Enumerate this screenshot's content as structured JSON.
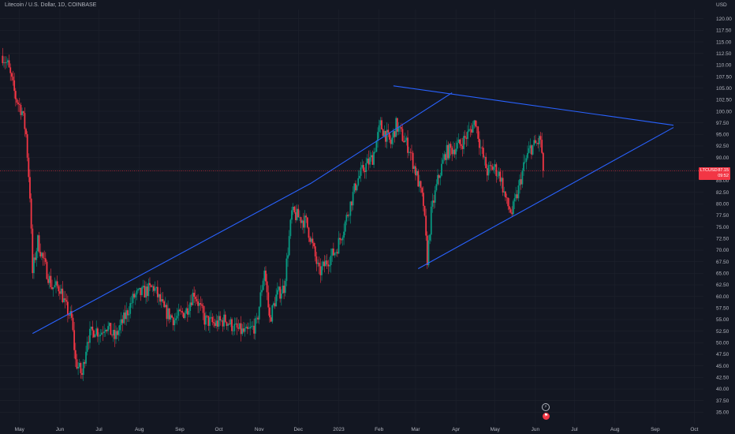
{
  "header": {
    "title": "Litecoin / U.S. Dollar, 1D, COINBASE"
  },
  "axis": {
    "currency_label": "USD"
  },
  "price_badge": {
    "symbol": "LTCUSD",
    "price": "87.15",
    "countdown": "09:52"
  },
  "colors": {
    "background": "#131722",
    "grid": "#1e222d",
    "up": "#089981",
    "down": "#f23645",
    "trendline": "#2962ff",
    "axis_text": "#b2b5be"
  },
  "icons": {
    "split_event": "dividend-icon",
    "earnings_event": "flag-icon"
  },
  "chart_data": {
    "type": "candlestick",
    "title": "Litecoin / U.S. Dollar, 1D, COINBASE",
    "xlabel": "",
    "ylabel": "",
    "y_axis_side": "right",
    "ylim": [
      32.5,
      122.0
    ],
    "y_ticks": [
      "120.00",
      "117.50",
      "115.00",
      "112.50",
      "110.00",
      "107.50",
      "105.00",
      "102.50",
      "100.00",
      "97.50",
      "95.00",
      "92.50",
      "90.00",
      "87.50",
      "85.00",
      "82.50",
      "80.00",
      "77.50",
      "75.00",
      "72.50",
      "70.00",
      "67.50",
      "65.00",
      "62.50",
      "60.00",
      "57.50",
      "55.00",
      "52.50",
      "50.00",
      "47.50",
      "45.00",
      "42.50",
      "40.00",
      "37.50",
      "35.00"
    ],
    "x_ticks": [
      {
        "label": "May",
        "date": "2022-05-01"
      },
      {
        "label": "Jun",
        "date": "2022-06-01"
      },
      {
        "label": "Jul",
        "date": "2022-07-01"
      },
      {
        "label": "Aug",
        "date": "2022-08-01"
      },
      {
        "label": "Sep",
        "date": "2022-09-01"
      },
      {
        "label": "Oct",
        "date": "2022-10-01"
      },
      {
        "label": "Nov",
        "date": "2022-11-01"
      },
      {
        "label": "Dec",
        "date": "2022-12-01"
      },
      {
        "label": "2023",
        "date": "2023-01-01"
      },
      {
        "label": "Feb",
        "date": "2023-02-01"
      },
      {
        "label": "Mar",
        "date": "2023-03-01"
      },
      {
        "label": "Apr",
        "date": "2023-04-01"
      },
      {
        "label": "May",
        "date": "2023-05-01"
      },
      {
        "label": "Jun",
        "date": "2023-06-01"
      },
      {
        "label": "Jul",
        "date": "2023-07-01"
      },
      {
        "label": "Aug",
        "date": "2023-08-01"
      },
      {
        "label": "Sep",
        "date": "2023-09-01"
      },
      {
        "label": "Oct",
        "date": "2023-10-01"
      }
    ],
    "price_line": 87.15,
    "close_anchors": [
      [
        "2022-04-18",
        112.0
      ],
      [
        "2022-04-22",
        110.0
      ],
      [
        "2022-04-28",
        103.0
      ],
      [
        "2022-05-03",
        100.0
      ],
      [
        "2022-05-06",
        95.0
      ],
      [
        "2022-05-09",
        82.0
      ],
      [
        "2022-05-11",
        65.0
      ],
      [
        "2022-05-12",
        67.0
      ],
      [
        "2022-05-15",
        72.0
      ],
      [
        "2022-05-20",
        67.0
      ],
      [
        "2022-05-26",
        62.0
      ],
      [
        "2022-06-01",
        62.0
      ],
      [
        "2022-06-05",
        58.0
      ],
      [
        "2022-06-10",
        55.0
      ],
      [
        "2022-06-13",
        46.0
      ],
      [
        "2022-06-18",
        43.0
      ],
      [
        "2022-06-22",
        51.0
      ],
      [
        "2022-06-28",
        53.0
      ],
      [
        "2022-07-02",
        52.0
      ],
      [
        "2022-07-06",
        54.0
      ],
      [
        "2022-07-13",
        51.0
      ],
      [
        "2022-07-20",
        55.0
      ],
      [
        "2022-07-28",
        60.0
      ],
      [
        "2022-08-05",
        61.0
      ],
      [
        "2022-08-12",
        62.0
      ],
      [
        "2022-08-20",
        57.0
      ],
      [
        "2022-08-28",
        55.0
      ],
      [
        "2022-09-06",
        57.0
      ],
      [
        "2022-09-12",
        61.0
      ],
      [
        "2022-09-20",
        55.0
      ],
      [
        "2022-09-28",
        54.0
      ],
      [
        "2022-10-06",
        55.0
      ],
      [
        "2022-10-14",
        53.0
      ],
      [
        "2022-10-22",
        52.0
      ],
      [
        "2022-10-30",
        54.0
      ],
      [
        "2022-11-05",
        66.0
      ],
      [
        "2022-11-09",
        55.0
      ],
      [
        "2022-11-14",
        60.0
      ],
      [
        "2022-11-20",
        62.0
      ],
      [
        "2022-11-26",
        78.0
      ],
      [
        "2022-12-02",
        77.0
      ],
      [
        "2022-12-07",
        76.0
      ],
      [
        "2022-12-11",
        72.0
      ],
      [
        "2022-12-17",
        65.0
      ],
      [
        "2022-12-24",
        68.0
      ],
      [
        "2022-12-30",
        70.0
      ],
      [
        "2023-01-05",
        75.0
      ],
      [
        "2023-01-10",
        80.0
      ],
      [
        "2023-01-15",
        85.0
      ],
      [
        "2023-01-21",
        88.0
      ],
      [
        "2023-01-27",
        90.0
      ],
      [
        "2023-02-02",
        97.0
      ],
      [
        "2023-02-06",
        95.0
      ],
      [
        "2023-02-10",
        93.0
      ],
      [
        "2023-02-14",
        97.0
      ],
      [
        "2023-02-18",
        95.0
      ],
      [
        "2023-02-24",
        92.0
      ],
      [
        "2023-03-02",
        86.0
      ],
      [
        "2023-03-07",
        80.0
      ],
      [
        "2023-03-10",
        68.0
      ],
      [
        "2023-03-13",
        78.0
      ],
      [
        "2023-03-18",
        85.0
      ],
      [
        "2023-03-24",
        91.0
      ],
      [
        "2023-03-30",
        92.0
      ],
      [
        "2023-04-05",
        93.0
      ],
      [
        "2023-04-10",
        95.0
      ],
      [
        "2023-04-16",
        98.0
      ],
      [
        "2023-04-20",
        92.0
      ],
      [
        "2023-04-25",
        87.0
      ],
      [
        "2023-04-30",
        88.0
      ],
      [
        "2023-05-05",
        86.0
      ],
      [
        "2023-05-10",
        80.0
      ],
      [
        "2023-05-14",
        78.0
      ],
      [
        "2023-05-18",
        82.0
      ],
      [
        "2023-05-23",
        88.0
      ],
      [
        "2023-05-28",
        92.0
      ],
      [
        "2023-06-02",
        93.0
      ],
      [
        "2023-06-05",
        94.0
      ],
      [
        "2023-06-07",
        87.15
      ]
    ],
    "trendlines": [
      {
        "name": "lower-support",
        "points": [
          [
            "2022-05-11",
            52.0
          ],
          [
            "2022-12-11",
            84.5
          ]
        ]
      },
      {
        "name": "upper-resistance-1",
        "points": [
          [
            "2022-12-11",
            84.5
          ],
          [
            "2023-03-29",
            104.0
          ]
        ]
      },
      {
        "name": "upper-resistance-2",
        "points": [
          [
            "2023-02-12",
            105.5
          ],
          [
            "2023-09-15",
            97.0
          ]
        ]
      },
      {
        "name": "lower-triangle",
        "points": [
          [
            "2023-03-03",
            66.0
          ],
          [
            "2023-09-15",
            96.5
          ]
        ]
      }
    ]
  }
}
